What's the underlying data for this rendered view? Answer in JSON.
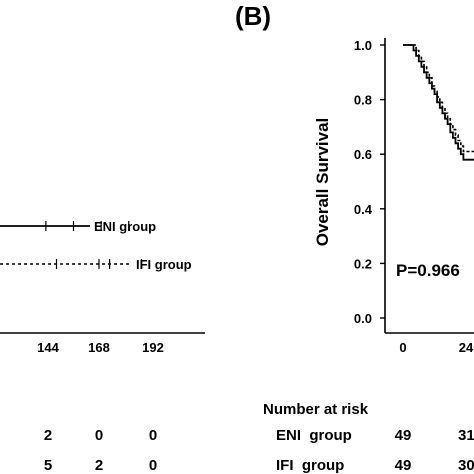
{
  "panel_label": "(B)",
  "chart_data": [
    {
      "type": "line",
      "title": "",
      "xticks": [
        "144",
        "168",
        "192"
      ],
      "x_tick_values": [
        144,
        168,
        192
      ],
      "series": [
        {
          "name": "ENI group",
          "style": "solid",
          "x": [
            90,
            140
          ],
          "y": [
            0.82,
            0.82
          ],
          "censor_x": [
            95,
            108,
            121,
            134
          ]
        },
        {
          "name": "IFI group",
          "style": "dashed",
          "x": [
            90,
            150
          ],
          "y": [
            0.72,
            0.72
          ],
          "censor_x": [
            100,
            120,
            125,
            140
          ]
        }
      ],
      "risk_table": {
        "rows": [
          {
            "label": "",
            "values": [
              "2",
              "0",
              "0"
            ]
          },
          {
            "label": "",
            "values": [
              "5",
              "2",
              "0"
            ]
          }
        ]
      }
    },
    {
      "type": "line",
      "title": "",
      "ylabel": "Overall Survival",
      "yticks": [
        "0.0",
        "0.2",
        "0.4",
        "0.6",
        "0.8",
        "1.0"
      ],
      "ylim": [
        0,
        1
      ],
      "xticks": [
        "0",
        "24"
      ],
      "annotation": "P=0.966",
      "series": [
        {
          "name": "ENI group",
          "style": "solid",
          "x": [
            0,
            3,
            4,
            5,
            6,
            7,
            8,
            9,
            10,
            11,
            12,
            13,
            14,
            15,
            16,
            17,
            18,
            19,
            20,
            21,
            22,
            23
          ],
          "y": [
            1.0,
            1.0,
            0.98,
            0.96,
            0.94,
            0.92,
            0.9,
            0.88,
            0.86,
            0.84,
            0.82,
            0.79,
            0.77,
            0.75,
            0.73,
            0.71,
            0.68,
            0.66,
            0.64,
            0.62,
            0.6,
            0.58
          ]
        },
        {
          "name": "IFI group",
          "style": "dashed",
          "x": [
            0,
            3,
            5,
            6,
            7,
            8,
            9,
            10,
            11,
            12,
            13,
            14,
            15,
            16,
            17,
            18,
            19,
            20,
            21,
            22,
            23
          ],
          "y": [
            1.0,
            1.0,
            0.98,
            0.96,
            0.94,
            0.92,
            0.9,
            0.88,
            0.85,
            0.83,
            0.81,
            0.79,
            0.77,
            0.75,
            0.73,
            0.71,
            0.69,
            0.67,
            0.65,
            0.63,
            0.61
          ]
        }
      ],
      "risk_table": {
        "title": "Number at risk",
        "rows": [
          {
            "label": "ENI  group",
            "values": [
              "49",
              "31"
            ]
          },
          {
            "label": "IFI  group",
            "values": [
              "49",
              "30"
            ]
          }
        ]
      }
    }
  ]
}
